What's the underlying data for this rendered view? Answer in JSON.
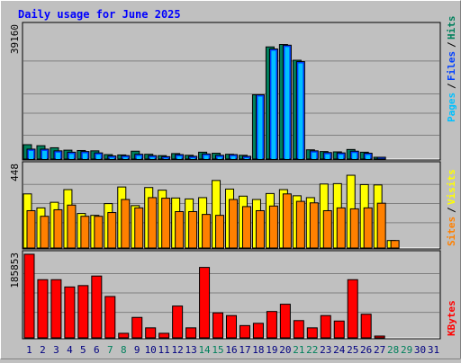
{
  "chart_data": [
    {
      "type": "bar",
      "title": "Daily usage for June 2025",
      "panel": "top",
      "y_max_label": "39160",
      "ylim": [
        0,
        39160
      ],
      "grid": true,
      "categories": [
        "1",
        "2",
        "3",
        "4",
        "5",
        "6",
        "7",
        "8",
        "9",
        "10",
        "11",
        "12",
        "13",
        "14",
        "15",
        "16",
        "17",
        "18",
        "19",
        "20",
        "21",
        "22",
        "23",
        "24",
        "25",
        "26",
        "27",
        "28",
        "29",
        "30",
        "31"
      ],
      "weekend_days": [
        "7",
        "8",
        "14",
        "15",
        "21",
        "22",
        "28",
        "29"
      ],
      "legend": [
        "Pages",
        "/",
        "Files",
        "/",
        "Hits"
      ],
      "series": [
        {
          "name": "Hits",
          "values": [
            4200,
            3900,
            3300,
            2600,
            2500,
            2400,
            1300,
            1200,
            2300,
            1400,
            1000,
            1600,
            1100,
            2000,
            1700,
            1400,
            1100,
            18800,
            32800,
            33500,
            28900,
            2700,
            2200,
            2100,
            2800,
            2000,
            300,
            0,
            0,
            0,
            0
          ]
        },
        {
          "name": "Files",
          "values": [
            2900,
            2900,
            2400,
            2000,
            2200,
            1800,
            900,
            1000,
            1400,
            1000,
            700,
            1300,
            800,
            1500,
            1100,
            1300,
            800,
            18800,
            32200,
            33300,
            28500,
            2400,
            1900,
            1800,
            2300,
            1700,
            100,
            0,
            0,
            0,
            0
          ]
        }
      ]
    },
    {
      "type": "bar",
      "panel": "middle",
      "y_max_label": "448",
      "ylim": [
        0,
        448
      ],
      "grid": true,
      "legend": [
        "Sites",
        "/",
        "Visits"
      ],
      "series": [
        {
          "name": "Visits",
          "values": [
            290,
            215,
            245,
            313,
            185,
            175,
            238,
            327,
            227,
            324,
            310,
            268,
            263,
            270,
            362,
            316,
            278,
            260,
            292,
            313,
            280,
            270,
            343,
            345,
            390,
            340,
            338,
            40,
            0,
            0,
            0
          ]
        },
        {
          "name": "Sites",
          "values": [
            200,
            170,
            205,
            230,
            170,
            170,
            190,
            260,
            215,
            270,
            267,
            195,
            195,
            180,
            175,
            260,
            222,
            200,
            225,
            290,
            250,
            242,
            200,
            215,
            210,
            215,
            240,
            40,
            0,
            0,
            0
          ]
        }
      ]
    },
    {
      "type": "bar",
      "panel": "bottom",
      "y_max_label": "185853",
      "ylim": [
        0,
        185853
      ],
      "grid": true,
      "legend": [
        "KBytes"
      ],
      "series": [
        {
          "name": "KBytes",
          "values": [
            184000,
            128000,
            128000,
            112000,
            115000,
            136000,
            91000,
            10000,
            45000,
            22000,
            10000,
            70000,
            22000,
            155000,
            55000,
            49000,
            27000,
            32000,
            58000,
            74000,
            38000,
            22000,
            49000,
            37000,
            128000,
            52000,
            2000,
            0,
            0,
            0,
            0
          ]
        }
      ]
    }
  ],
  "colors": {
    "background": "#c0c0c0",
    "title": "#0000ff",
    "hits": "#00805c",
    "files": "#0040ff",
    "pages": "#00c0ff",
    "visits": "#ffff00",
    "sites": "#ff8000",
    "kbytes": "#ff0000",
    "weekday_label": "#000080",
    "weekend_label": "#00805c"
  }
}
